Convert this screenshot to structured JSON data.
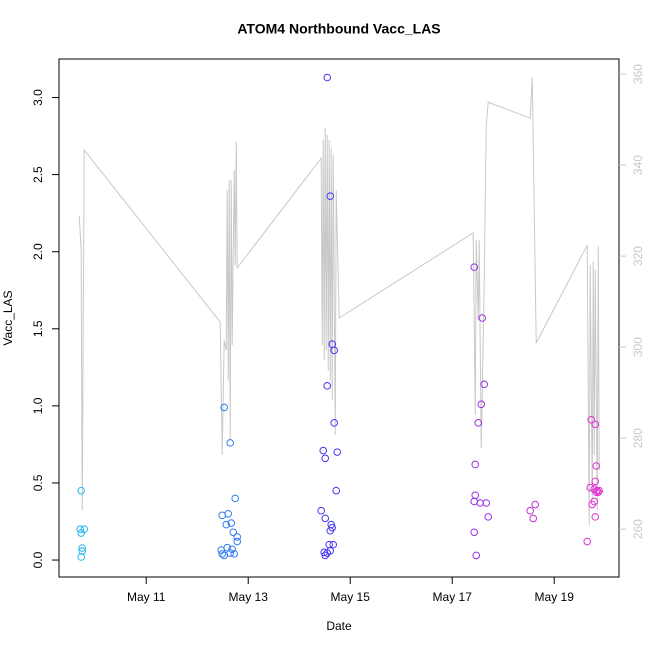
{
  "chart_data": {
    "type": "scatter",
    "title": "ATOM4 Northbound Vacc_LAS",
    "xlabel": "Date",
    "ylabel": "Vacc_LAS",
    "xlim": [
      9.29,
      20.27
    ],
    "xticks": [
      {
        "value": 11,
        "label": "May 11"
      },
      {
        "value": 13,
        "label": "May 13"
      },
      {
        "value": 15,
        "label": "May 15"
      },
      {
        "value": 17,
        "label": "May 17"
      },
      {
        "value": 19,
        "label": "May 19"
      }
    ],
    "ylim": [
      -0.11,
      3.25
    ],
    "yticks": [
      {
        "value": 0,
        "label": "0.0"
      },
      0.5,
      {
        "value": 1,
        "label": "1.0"
      },
      1.5,
      {
        "value": 2,
        "label": "2.0"
      },
      2.5,
      {
        "value": 3,
        "label": "3.0"
      }
    ],
    "y2lim": [
      249.5,
      363.3
    ],
    "y2ticks": [
      260,
      280,
      300,
      320,
      340,
      360
    ],
    "y2color": "#c8c8c8",
    "series": [
      {
        "type": "line",
        "axis": "y2",
        "color": "#c8c8c8",
        "x": [
          9.686,
          9.725,
          9.745,
          9.784,
          12.451,
          12.49,
          12.529,
          12.569,
          12.588,
          12.608,
          12.627,
          12.647,
          12.667,
          12.686,
          12.725,
          12.745,
          12.765,
          12.784,
          14.431,
          14.451,
          14.471,
          14.49,
          14.51,
          14.529,
          14.549,
          14.569,
          14.588,
          14.608,
          14.627,
          14.647,
          14.667,
          14.706,
          14.725,
          14.784,
          17.412,
          17.451,
          17.471,
          17.51,
          17.529,
          17.569,
          17.627,
          17.667,
          17.706,
          18.529,
          18.569,
          18.647,
          19.647,
          19.686,
          19.706,
          19.745,
          19.765,
          19.784,
          19.804,
          19.843,
          19.863,
          19.882
        ],
        "values": [
          328.8,
          321.3,
          264.2,
          343.3,
          305.5,
          276.3,
          301.5,
          299.3,
          334.5,
          292.7,
          336.7,
          279.6,
          336.7,
          300.4,
          338.9,
          318.0,
          345.1,
          317.4,
          341.5,
          300.4,
          345.5,
          297.1,
          348.1,
          299.3,
          346.6,
          294.9,
          345.5,
          292.7,
          343.7,
          288.4,
          342.2,
          280.7,
          334.5,
          306.4,
          325.1,
          285.1,
          323.5,
          305.9,
          323.5,
          277.8,
          314.3,
          348.8,
          353.8,
          350.3,
          359.3,
          300.9,
          322.4,
          260.9,
          318.0,
          266.4,
          318.7,
          276.3,
          316.9,
          264.2,
          322.2,
          273.0
        ]
      },
      {
        "type": "scatter",
        "x": [
          9.725,
          9.706,
          9.784,
          9.725,
          9.745,
          9.745,
          9.725,
          12.529,
          12.647,
          12.745,
          12.49,
          12.608,
          12.667,
          12.569,
          12.706,
          12.784,
          12.784,
          12.471,
          12.49,
          12.529,
          12.588,
          12.686,
          12.647,
          12.725,
          14.549,
          14.608,
          14.647,
          14.686,
          14.549,
          14.686,
          14.471,
          14.745,
          14.51,
          14.725,
          14.431,
          14.51,
          14.627,
          14.647,
          14.608,
          14.588,
          14.667,
          14.49,
          14.549,
          14.51,
          14.608,
          17.431,
          17.588,
          17.627,
          17.569,
          17.51,
          17.451,
          17.451,
          17.431,
          17.549,
          17.667,
          17.706,
          17.431,
          17.471,
          18.627,
          18.529,
          18.588,
          19.725,
          19.804,
          19.824,
          19.804,
          19.706,
          19.784,
          19.843,
          19.863,
          19.824,
          19.882,
          19.784,
          19.745,
          19.804,
          19.647
        ],
        "values": [
          0.45,
          0.2,
          0.2,
          0.175,
          0.078,
          0.058,
          0.02,
          0.99,
          0.76,
          0.4,
          0.29,
          0.3,
          0.24,
          0.23,
          0.18,
          0.15,
          0.12,
          0.065,
          0.04,
          0.03,
          0.08,
          0.07,
          0.045,
          0.04,
          3.13,
          2.36,
          1.4,
          1.36,
          1.13,
          0.89,
          0.71,
          0.7,
          0.66,
          0.45,
          0.32,
          0.27,
          0.23,
          0.21,
          0.19,
          0.1,
          0.1,
          0.05,
          0.045,
          0.03,
          0.06,
          1.9,
          1.57,
          1.14,
          1.01,
          0.89,
          0.62,
          0.42,
          0.38,
          0.37,
          0.37,
          0.28,
          0.18,
          0.03,
          0.36,
          0.32,
          0.27,
          0.91,
          0.88,
          0.61,
          0.51,
          0.47,
          0.46,
          0.45,
          0.44,
          0.44,
          0.45,
          0.38,
          0.36,
          0.28,
          0.12
        ],
        "colors": [
          "#22b8f0",
          "#22b8f0",
          "#22b8f0",
          "#22b8f0",
          "#22b8f0",
          "#22b8f0",
          "#22b8f0",
          "#2f7cf2",
          "#2f7cf2",
          "#2f7cf2",
          "#2f7cf2",
          "#2f7cf2",
          "#2f7cf2",
          "#2f7cf2",
          "#2f7cf2",
          "#2f7cf2",
          "#2f7cf2",
          "#2f7cf2",
          "#2f7cf2",
          "#2f7cf2",
          "#2f7cf2",
          "#2f7cf2",
          "#2f7cf2",
          "#2f7cf2",
          "#4436f2",
          "#4436f2",
          "#4436f2",
          "#4436f2",
          "#4436f2",
          "#4436f2",
          "#4436f2",
          "#4436f2",
          "#4436f2",
          "#4436f2",
          "#4436f2",
          "#4436f2",
          "#4436f2",
          "#4436f2",
          "#4436f2",
          "#4436f2",
          "#4436f2",
          "#4436f2",
          "#4436f2",
          "#4436f2",
          "#4436f2",
          "#9a2ee4",
          "#9a2ee4",
          "#9a2ee4",
          "#9a2ee4",
          "#9a2ee4",
          "#9a2ee4",
          "#9a2ee4",
          "#9a2ee4",
          "#9a2ee4",
          "#9a2ee4",
          "#9a2ee4",
          "#9a2ee4",
          "#9a2ee4",
          "#c22fd8",
          "#c22fd8",
          "#c22fd8",
          "#e22fd0",
          "#e22fd0",
          "#e22fd0",
          "#e22fd0",
          "#e22fd0",
          "#e22fd0",
          "#e22fd0",
          "#e22fd0",
          "#e22fd0",
          "#e22fd0",
          "#e22fd0",
          "#e22fd0",
          "#e22fd0",
          "#e22fd0"
        ]
      }
    ]
  }
}
